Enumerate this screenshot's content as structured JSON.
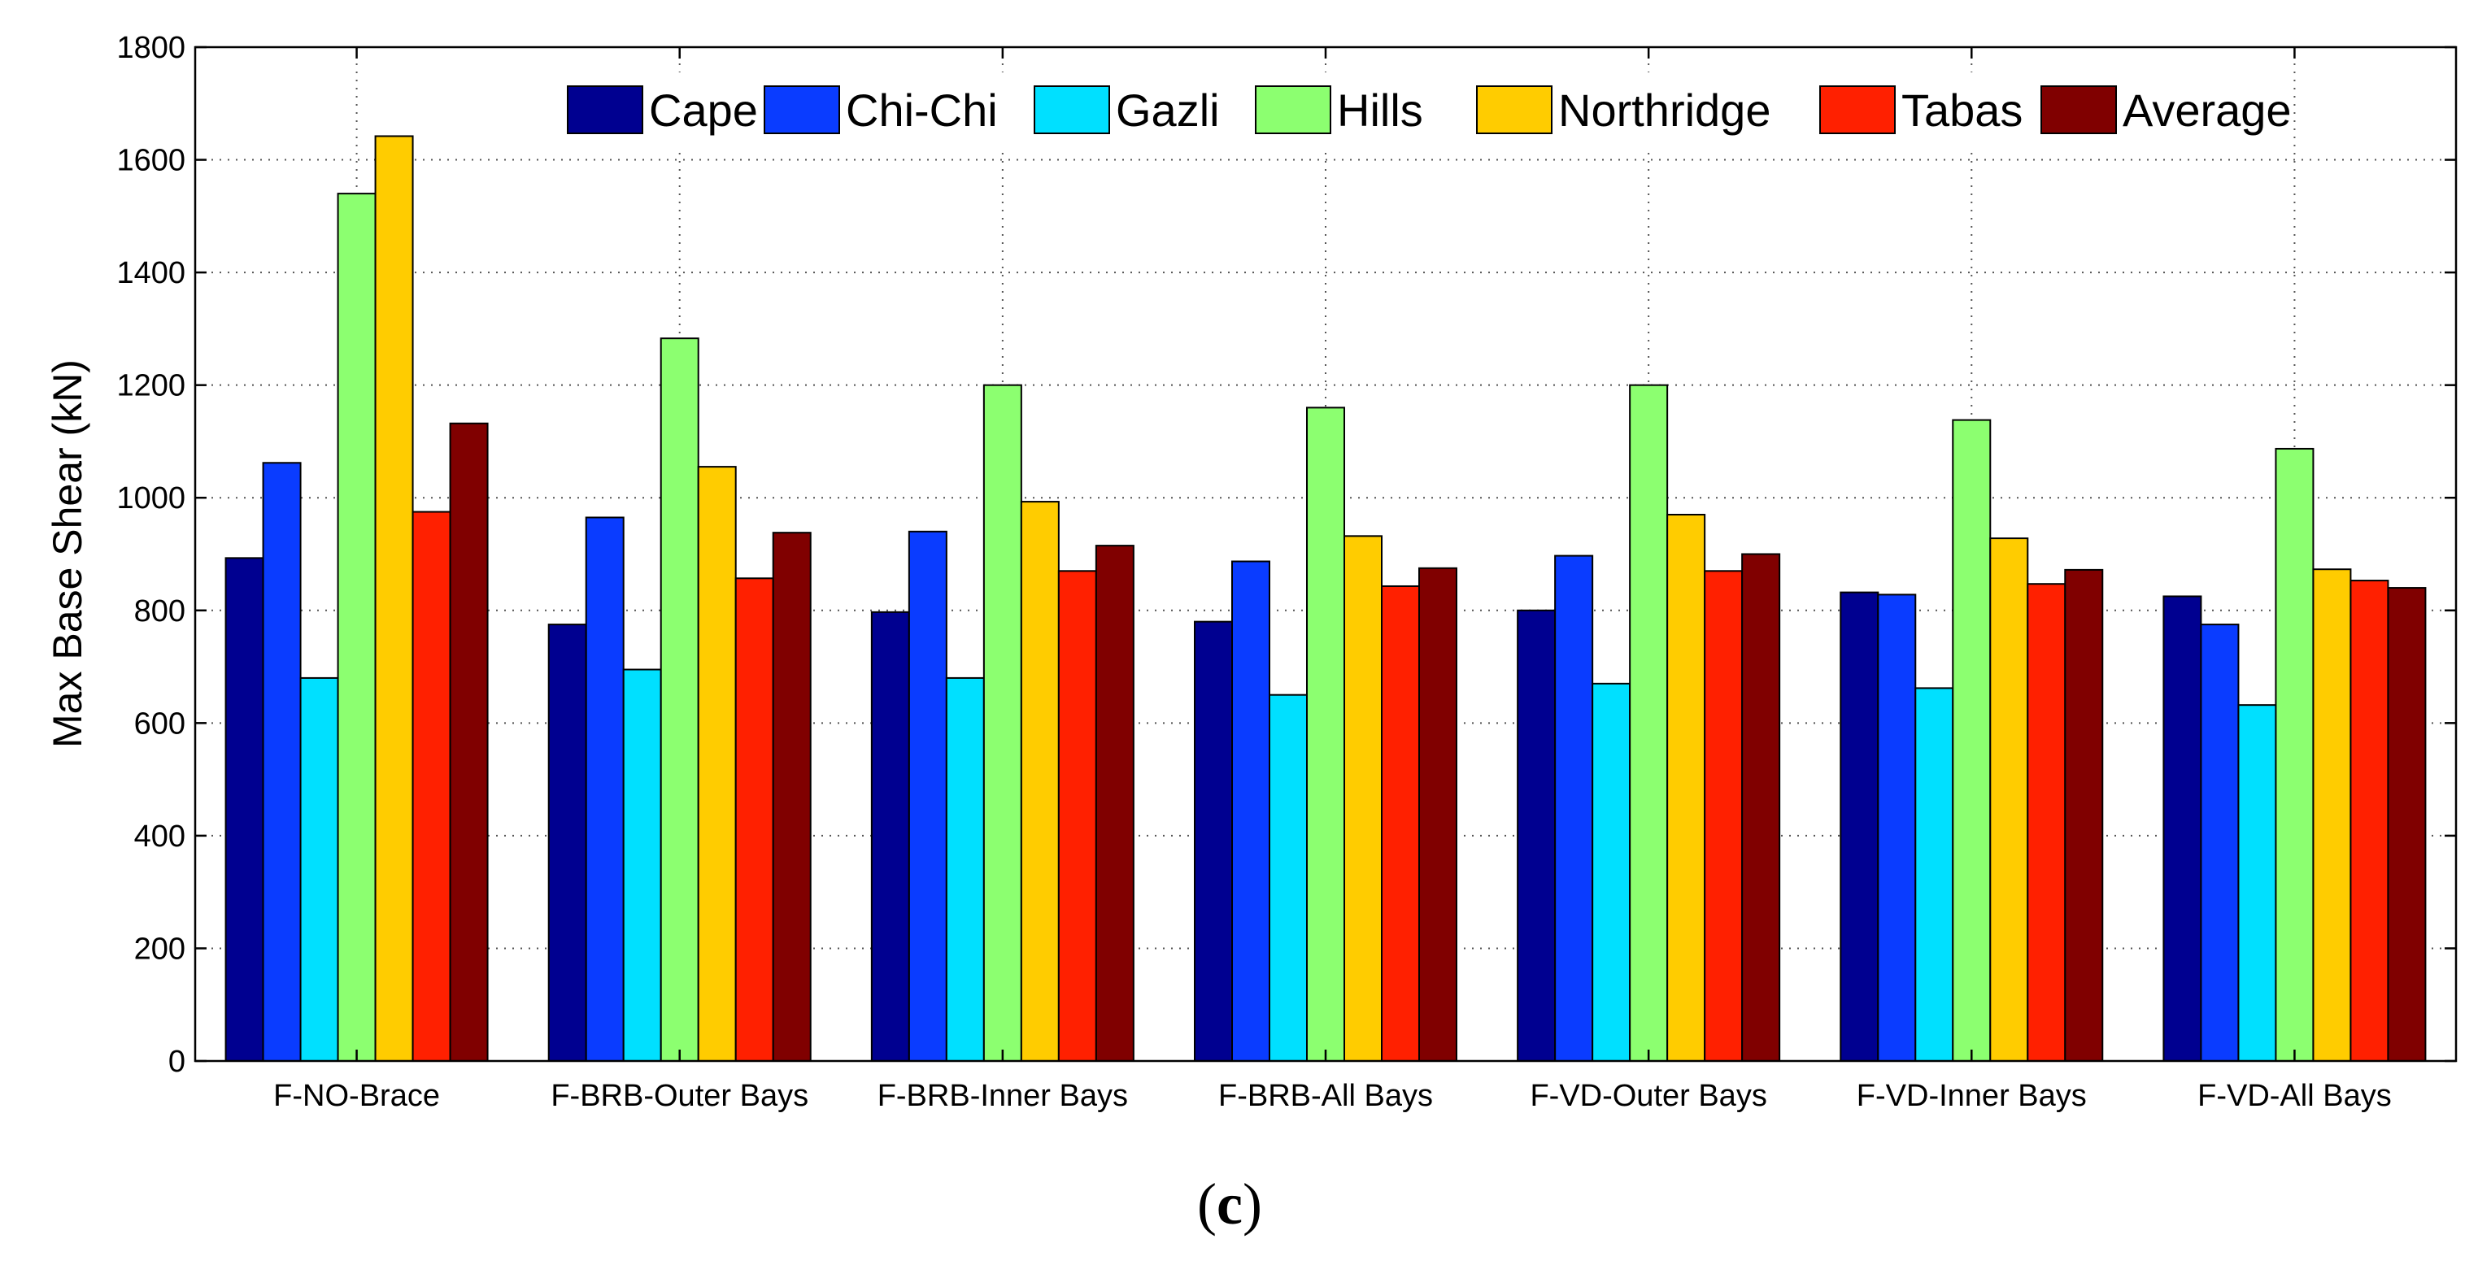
{
  "chart_data": {
    "type": "bar",
    "title": "",
    "xlabel": "",
    "ylabel": "Max Base Shear (kN)",
    "ylim": [
      0,
      1800
    ],
    "yticks": [
      0,
      200,
      400,
      600,
      800,
      1000,
      1200,
      1400,
      1600,
      1800
    ],
    "grid": true,
    "legend_position": "top",
    "categories": [
      "F-NO-Brace",
      "F-BRB-Outer Bays",
      "F-BRB-Inner Bays",
      "F-BRB-All Bays",
      "F-VD-Outer Bays",
      "F-VD-Inner Bays",
      "F-VD-All Bays"
    ],
    "series": [
      {
        "name": "Cape",
        "color": "#000090",
        "values": [
          893,
          775,
          797,
          780,
          800,
          832,
          825
        ]
      },
      {
        "name": "Chi-Chi",
        "color": "#0a3cff",
        "values": [
          1062,
          965,
          940,
          887,
          897,
          828,
          775
        ]
      },
      {
        "name": "Gazli",
        "color": "#00e0ff",
        "values": [
          680,
          695,
          680,
          650,
          670,
          662,
          632
        ]
      },
      {
        "name": "Hills",
        "color": "#8cff70",
        "values": [
          1540,
          1283,
          1200,
          1160,
          1200,
          1138,
          1087
        ]
      },
      {
        "name": "Northridge",
        "color": "#ffcc00",
        "values": [
          1642,
          1055,
          993,
          932,
          970,
          928,
          873
        ]
      },
      {
        "name": "Tabas",
        "color": "#ff2000",
        "values": [
          975,
          857,
          870,
          843,
          870,
          847,
          853
        ]
      },
      {
        "name": "Average",
        "color": "#800000",
        "values": [
          1132,
          938,
          915,
          875,
          900,
          872,
          840
        ]
      }
    ]
  },
  "caption": {
    "open": "(",
    "letter": "c",
    "close": ")"
  }
}
